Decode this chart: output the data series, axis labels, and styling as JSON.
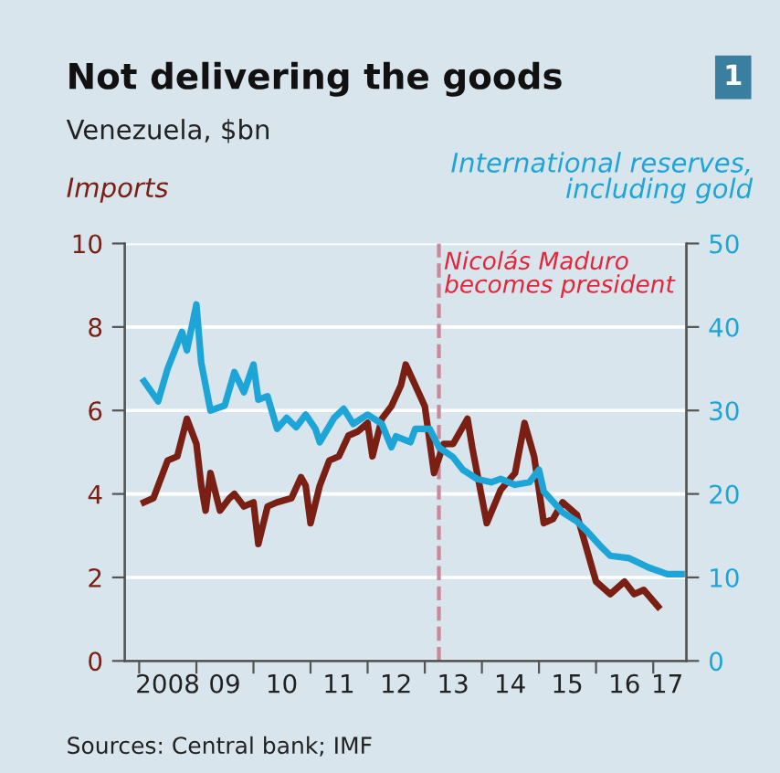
{
  "chart_data": {
    "type": "line",
    "title": "Not delivering the goods",
    "subtitle": "Venezuela, $bn",
    "ylabel": "Imports",
    "y2label": "International reserves,\nincluding gold",
    "annotations": [
      "Sources: Central bank; IMF",
      "1"
    ],
    "series": [
      {
        "color": "#7a1f14",
        "axis": "y",
        "x": [
          "2008-02",
          "2008-04",
          "2008-07",
          "2008-09",
          "2008-11",
          "2009-01",
          "2009-02",
          "2009-03",
          "2009-04",
          "2009-06",
          "2009-08",
          "2009-09",
          "2009-11",
          "2010-01",
          "2010-02",
          "2010-04",
          "2010-06",
          "2010-09",
          "2010-11",
          "2010-12",
          "2011-01",
          "2011-03",
          "2011-05",
          "2011-07",
          "2011-09",
          "2011-11",
          "2012-01",
          "2012-02",
          "2012-04",
          "2012-06",
          "2012-08",
          "2012-09",
          "2012-11",
          "2013-01",
          "2013-03",
          "2013-05",
          "2013-07",
          "2013-10",
          "2013-11",
          "2014-02",
          "2014-05",
          "2014-08",
          "2014-10",
          "2014-12",
          "2015-02",
          "2015-04",
          "2015-06",
          "2015-09",
          "2016-01",
          "2016-04",
          "2016-07",
          "2016-09",
          "2016-11",
          "2017-02"
        ],
        "values": [
          3.8,
          3.9,
          4.8,
          4.9,
          5.8,
          5.2,
          4.2,
          3.6,
          4.5,
          3.6,
          3.9,
          4.0,
          3.7,
          3.8,
          2.8,
          3.7,
          3.8,
          3.9,
          4.4,
          4.2,
          3.3,
          4.2,
          4.8,
          4.9,
          5.4,
          5.5,
          5.7,
          4.9,
          5.8,
          6.1,
          6.6,
          7.1,
          6.6,
          6.1,
          4.5,
          5.2,
          5.2,
          5.8,
          5.1,
          3.3,
          4.1,
          4.5,
          5.7,
          4.9,
          3.3,
          3.4,
          3.8,
          3.5,
          1.9,
          1.6,
          1.9,
          1.6,
          1.7,
          1.3
        ]
      },
      {
        "color": "#1ea5d8",
        "axis": "y2",
        "x": [
          "2008-02",
          "2008-05",
          "2008-07",
          "2008-10",
          "2008-11",
          "2009-01",
          "2009-02",
          "2009-04",
          "2009-07",
          "2009-09",
          "2009-11",
          "2010-01",
          "2010-02",
          "2010-04",
          "2010-06",
          "2010-08",
          "2010-10",
          "2010-12",
          "2011-02",
          "2011-03",
          "2011-06",
          "2011-08",
          "2011-10",
          "2012-01",
          "2012-04",
          "2012-06",
          "2012-07",
          "2012-10",
          "2012-11",
          "2013-02",
          "2013-04",
          "2013-07",
          "2013-09",
          "2013-12",
          "2014-03",
          "2014-05",
          "2014-08",
          "2014-11",
          "2015-01",
          "2015-02",
          "2015-06",
          "2015-09",
          "2015-11",
          "2016-02",
          "2016-04",
          "2016-08",
          "2016-12",
          "2017-04",
          "2017-07"
        ],
        "values": [
          33.5,
          31.1,
          35.0,
          39.4,
          37.2,
          42.7,
          35.7,
          30.0,
          30.6,
          34.6,
          32.2,
          35.5,
          31.3,
          31.7,
          27.8,
          29.1,
          28.0,
          29.5,
          27.8,
          26.2,
          29.1,
          30.2,
          28.4,
          29.5,
          28.4,
          25.6,
          26.9,
          26.2,
          27.8,
          27.8,
          25.6,
          24.4,
          22.9,
          21.8,
          21.4,
          21.8,
          21.1,
          21.4,
          22.9,
          20.3,
          17.8,
          16.7,
          15.6,
          13.7,
          12.6,
          12.3,
          11.2,
          10.4,
          10.4
        ]
      }
    ],
    "ref_lines": [
      {
        "axis": "x",
        "value": "2013-04",
        "label": "Nicolás Maduro\nbecomes president",
        "color": "#c9879a",
        "line_style": "dashed"
      }
    ],
    "xlim": [
      "2007-10",
      "2017-08"
    ],
    "xticks": [
      {
        "value": "2008-01",
        "label": null
      },
      {
        "value": "2009-01",
        "label": null
      },
      {
        "value": "2010-01",
        "label": null
      },
      {
        "value": "2011-01",
        "label": null
      },
      {
        "value": "2012-01",
        "label": null
      },
      {
        "value": "2013-01",
        "label": null
      },
      {
        "value": "2014-01",
        "label": null
      },
      {
        "value": "2015-01",
        "label": null
      },
      {
        "value": "2016-01",
        "label": null
      },
      {
        "value": "2017-01",
        "label": null
      },
      {
        "value": "2008-07",
        "label": "2008"
      },
      {
        "value": "2009-07",
        "label": "09"
      },
      {
        "value": "2010-07",
        "label": "10"
      },
      {
        "value": "2011-07",
        "label": "11"
      },
      {
        "value": "2012-07",
        "label": "12"
      },
      {
        "value": "2013-07",
        "label": "13"
      },
      {
        "value": "2014-07",
        "label": "14"
      },
      {
        "value": "2015-07",
        "label": "15"
      },
      {
        "value": "2016-07",
        "label": "16"
      },
      {
        "value": "2017-04",
        "label": "17"
      }
    ],
    "ylim": [
      0,
      10
    ],
    "yticks": [
      0,
      2,
      4,
      6,
      8,
      10
    ],
    "y2lim": [
      0,
      50
    ],
    "y2ticks": [
      0,
      10,
      20,
      30,
      40,
      50
    ],
    "grid": "y"
  }
}
